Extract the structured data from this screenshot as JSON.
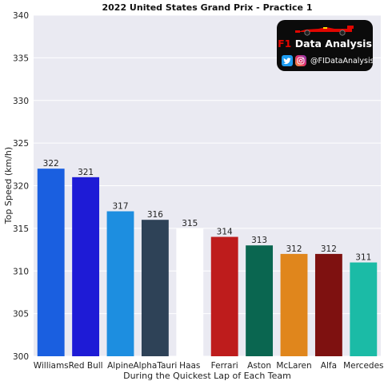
{
  "chart_data": {
    "type": "bar",
    "title": "2022 United States Grand Prix - Practice 1",
    "xlabel": "During the Quickest Lap of Each Team",
    "ylabel": "Top Speed (km/h)",
    "ylim": [
      300,
      340
    ],
    "yticks": [
      300,
      305,
      310,
      315,
      320,
      325,
      330,
      335,
      340
    ],
    "grid": true,
    "categories": [
      "Williams",
      "Red Bull",
      "Alpine",
      "AlphaTauri",
      "Haas",
      "Ferrari",
      "Aston",
      "McLaren",
      "Alfa",
      "Mercedes"
    ],
    "values": [
      322,
      321,
      317,
      316,
      315,
      314,
      313,
      312,
      312,
      311
    ],
    "colors": [
      "#1a5fe0",
      "#1e1bd6",
      "#1d8ee0",
      "#2e4257",
      "#ffffff",
      "#be1c1c",
      "#0a6650",
      "#e0861c",
      "#7e1110",
      "#1bbba6"
    ]
  },
  "badge": {
    "brand_f1": "F1",
    "brand_rest": "Data Analysis",
    "handle": "@FIDataAnalysis",
    "icons": [
      "f1-car-icon",
      "twitter-icon",
      "instagram-icon"
    ]
  }
}
